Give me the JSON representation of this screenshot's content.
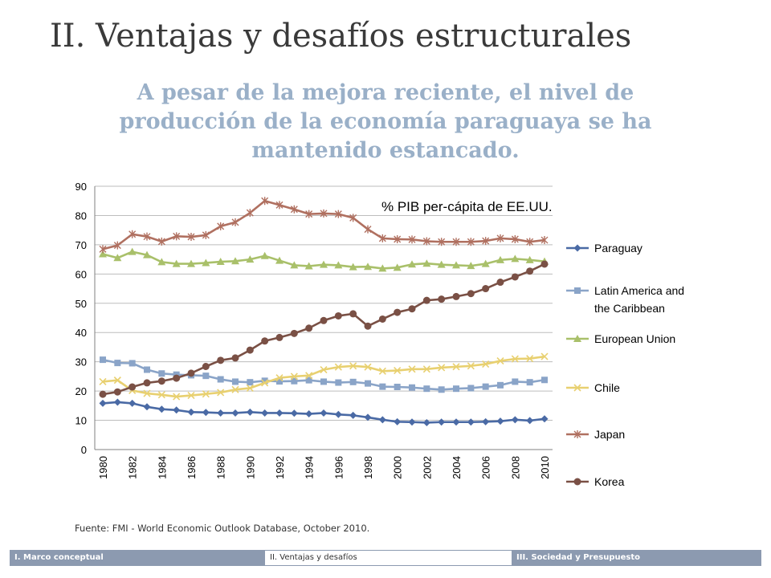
{
  "slide": {
    "title": "II. Ventajas y desafíos estructurales",
    "subtitle": "A pesar de la mejora reciente, el nivel de producción de la economía paraguaya se ha mantenido estancado.",
    "source": "Fuente: FMI - World Economic Outlook Database, October 2010."
  },
  "footer": {
    "items": [
      {
        "label": "I. Marco conceptual"
      },
      {
        "label": "II. Ventajas y desafíos"
      },
      {
        "label": "III. Sociedad y Presupuesto"
      }
    ]
  },
  "chart_data": {
    "type": "line",
    "annotation": "% PIB per-cápita de EE.UU.",
    "x": [
      1980,
      1981,
      1982,
      1983,
      1984,
      1985,
      1986,
      1987,
      1988,
      1989,
      1990,
      1991,
      1992,
      1993,
      1994,
      1995,
      1996,
      1997,
      1998,
      1999,
      2000,
      2001,
      2002,
      2003,
      2004,
      2005,
      2006,
      2007,
      2008,
      2009,
      2010
    ],
    "x_tick_labels": [
      "1980",
      "1982",
      "1984",
      "1986",
      "1988",
      "1990",
      "1992",
      "1994",
      "1996",
      "1998",
      "2000",
      "2002",
      "2004",
      "2006",
      "2008",
      "2010"
    ],
    "ylim": [
      0,
      90
    ],
    "y_tick_labels": [
      "0",
      "10",
      "20",
      "30",
      "40",
      "50",
      "60",
      "70",
      "80",
      "90"
    ],
    "grid": true,
    "legend_position": "right",
    "series": [
      {
        "name": "Paraguay",
        "color": "#4a6aa5",
        "marker": "diamond",
        "values": [
          15.8,
          16.2,
          15.8,
          14.6,
          13.8,
          13.5,
          12.8,
          12.7,
          12.5,
          12.5,
          12.8,
          12.5,
          12.5,
          12.4,
          12.2,
          12.5,
          12,
          11.7,
          11,
          10.2,
          9.5,
          9.4,
          9.2,
          9.4,
          9.4,
          9.4,
          9.5,
          9.7,
          10.2,
          9.9,
          10.5
        ]
      },
      {
        "name": "Latin America and the Caribbean",
        "color": "#8aa4c8",
        "marker": "square",
        "values": [
          30.7,
          29.6,
          29.5,
          27.3,
          26,
          25.6,
          25.4,
          25.2,
          24,
          23.2,
          23,
          23.5,
          23.3,
          23.4,
          23.7,
          23.2,
          22.9,
          23.1,
          22.6,
          21.5,
          21.4,
          21.2,
          20.8,
          20.5,
          20.8,
          21,
          21.5,
          22,
          23.2,
          23,
          23.8
        ]
      },
      {
        "name": "European Union",
        "color": "#a9c06a",
        "marker": "triangle",
        "values": [
          66.8,
          65.5,
          67.6,
          66.5,
          64.1,
          63.5,
          63.5,
          63.8,
          64.2,
          64.4,
          65,
          66.2,
          64.6,
          63,
          62.7,
          63.2,
          63,
          62.4,
          62.5,
          61.9,
          62.2,
          63.3,
          63.6,
          63.2,
          63,
          62.8,
          63.5,
          64.8,
          65.2,
          64.8,
          64.3
        ]
      },
      {
        "name": "Chile",
        "color": "#e8d070",
        "marker": "x",
        "values": [
          23.2,
          23.7,
          20.2,
          19.2,
          18.7,
          18.1,
          18.5,
          19,
          19.5,
          20.5,
          21,
          22.8,
          24.5,
          25,
          25.3,
          27.3,
          28.2,
          28.6,
          28.2,
          26.8,
          27,
          27.5,
          27.5,
          28,
          28.3,
          28.6,
          29.2,
          30.3,
          31,
          31.1,
          31.8
        ]
      },
      {
        "name": "Japan",
        "color": "#b07060",
        "marker": "star",
        "values": [
          68.5,
          69.8,
          73.6,
          72.8,
          71.1,
          72.9,
          72.7,
          73.3,
          76.3,
          77.7,
          80.9,
          85,
          83.6,
          82.1,
          80.5,
          80.7,
          80.5,
          79.2,
          75.3,
          72.2,
          71.9,
          71.8,
          71.2,
          71,
          71,
          71,
          71.3,
          72.2,
          71.9,
          71,
          71.6
        ]
      },
      {
        "name": "Korea",
        "color": "#7a5045",
        "marker": "circle",
        "values": [
          18.9,
          19.7,
          21.4,
          22.8,
          23.4,
          24.4,
          26.1,
          28.4,
          30.5,
          31.3,
          34,
          37.1,
          38.3,
          39.7,
          41.5,
          44.1,
          45.7,
          46.4,
          42.2,
          44.6,
          46.9,
          48.1,
          51,
          51.4,
          52.3,
          53.3,
          55,
          57.2,
          59,
          61,
          63.4
        ]
      }
    ]
  }
}
